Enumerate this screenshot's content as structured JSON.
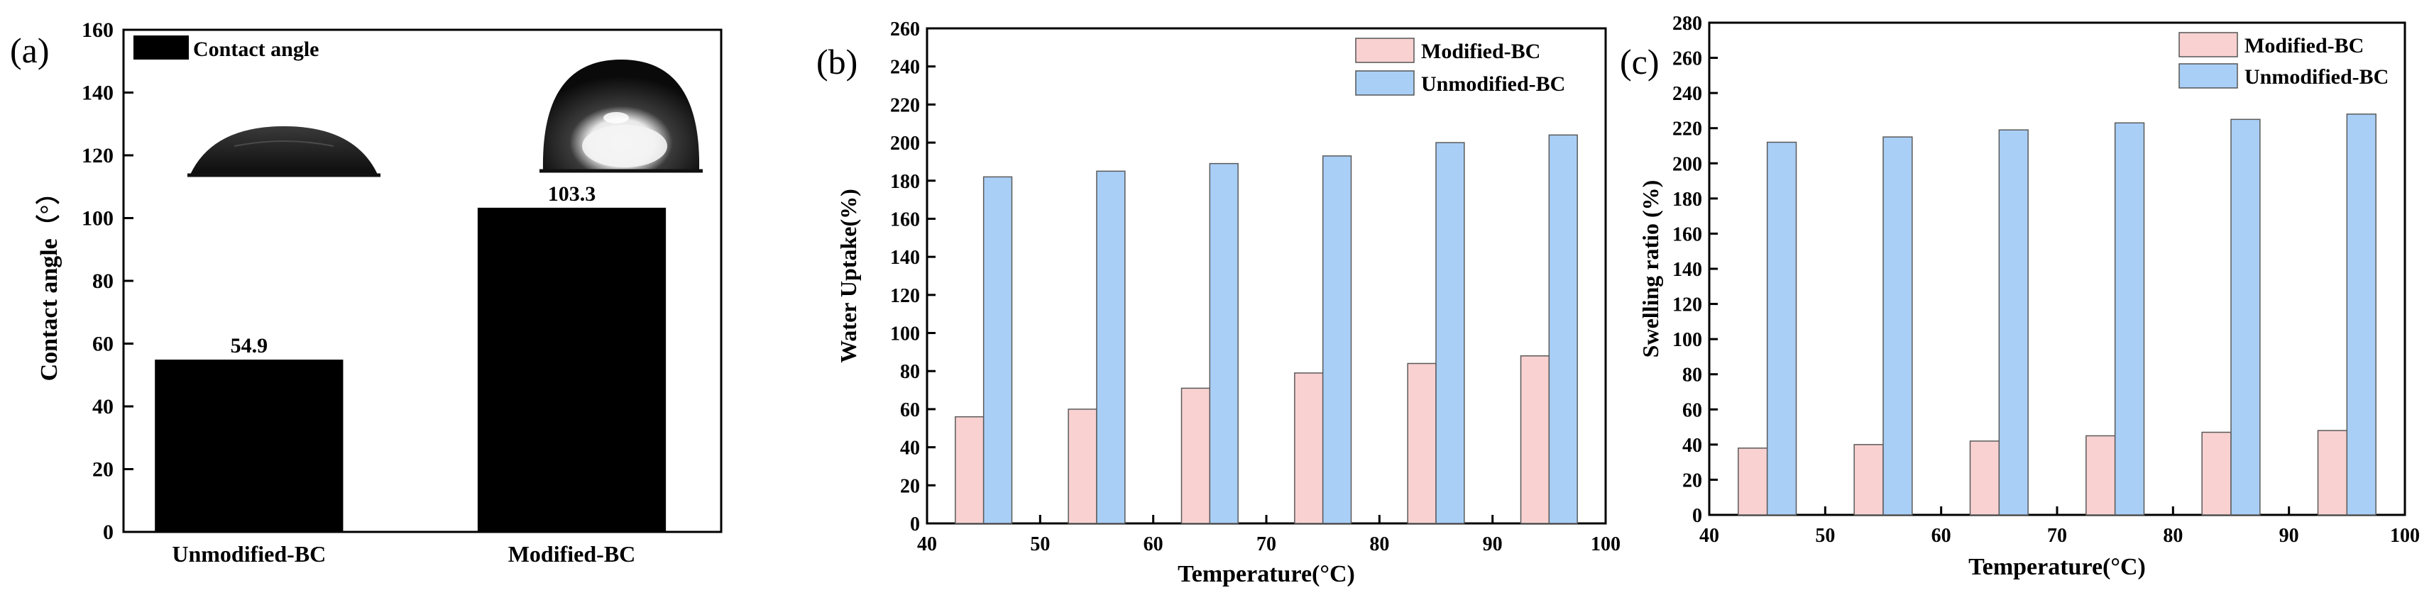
{
  "chart_data": [
    {
      "panel": "(a)",
      "type": "bar",
      "categories": [
        "Unmodified-BC",
        "Modified-BC"
      ],
      "values": [
        54.9,
        103.3
      ],
      "value_labels": [
        "54.9",
        "103.3"
      ],
      "legend": [
        "Contact angle"
      ],
      "xlabel": "",
      "ylabel": "Contact angle（°）",
      "ylim": [
        0,
        160
      ],
      "yticks": [
        "0",
        "20",
        "40",
        "60",
        "80",
        "100",
        "120",
        "140",
        "160"
      ],
      "bar_color": "#000000",
      "legend_position": "top-left",
      "insets": [
        "water-droplet-unmodified",
        "water-droplet-modified"
      ]
    },
    {
      "panel": "(b)",
      "type": "bar",
      "x": [
        45,
        55,
        65,
        75,
        85,
        95
      ],
      "series": [
        {
          "name": "Modified-BC",
          "values": [
            56,
            60,
            71,
            79,
            84,
            88
          ],
          "color": "#f9d1d1"
        },
        {
          "name": "Unmodified-BC",
          "values": [
            182,
            185,
            189,
            193,
            200,
            204
          ],
          "color": "#a9cff7"
        }
      ],
      "xlabel": "Temperature(°C)",
      "ylabel": "Water Uptake(%)",
      "xlim": [
        40,
        100
      ],
      "ylim": [
        0,
        260
      ],
      "xticks": [
        "40",
        "50",
        "60",
        "70",
        "80",
        "90",
        "100"
      ],
      "yticks": [
        "0",
        "20",
        "40",
        "60",
        "80",
        "100",
        "120",
        "140",
        "160",
        "180",
        "200",
        "220",
        "240",
        "260"
      ],
      "legend_position": "top-right"
    },
    {
      "panel": "(c)",
      "type": "bar",
      "x": [
        45,
        55,
        65,
        75,
        85,
        95
      ],
      "series": [
        {
          "name": "Modified-BC",
          "values": [
            38,
            40,
            42,
            45,
            47,
            48
          ],
          "color": "#f9d1d1"
        },
        {
          "name": "Unmodified-BC",
          "values": [
            212,
            215,
            219,
            223,
            225,
            228
          ],
          "color": "#a9cff7"
        }
      ],
      "xlabel": "Temperature(°C)",
      "ylabel": "Swelling ratio (%)",
      "xlim": [
        40,
        100
      ],
      "ylim": [
        0,
        280
      ],
      "xticks": [
        "40",
        "50",
        "60",
        "70",
        "80",
        "90",
        "100"
      ],
      "yticks": [
        "0",
        "20",
        "40",
        "60",
        "80",
        "100",
        "120",
        "140",
        "160",
        "180",
        "200",
        "220",
        "240",
        "260",
        "280"
      ],
      "legend_position": "top-right"
    }
  ]
}
